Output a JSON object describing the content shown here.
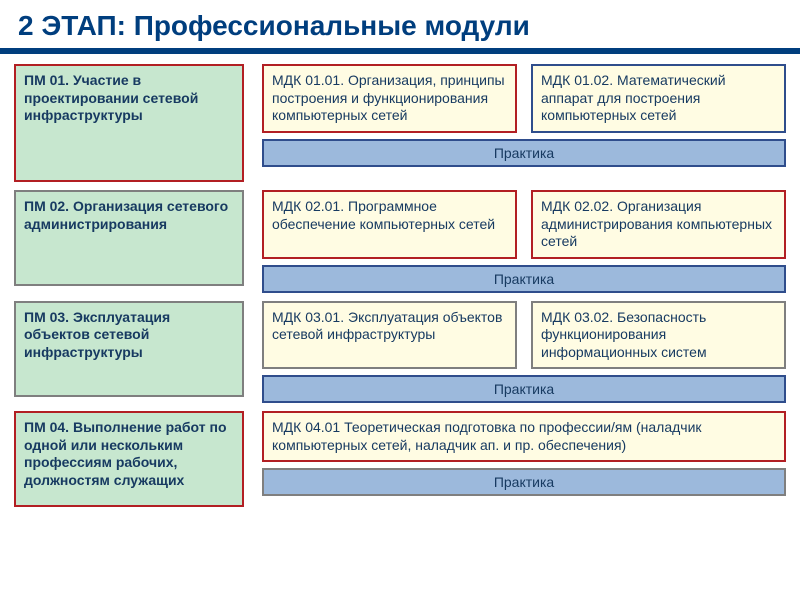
{
  "title": {
    "text": "2 ЭТАП: Профессиональные модули",
    "fontsize": 28,
    "color": "#003e7e"
  },
  "layout": {
    "ruleColor": "#003e7e",
    "ruleHeight": 6
  },
  "fontsizes": {
    "pm": 14,
    "mdk": 14,
    "practice": 14
  },
  "colors": {
    "pm_bg": "#c7e7cf",
    "pm_border1": "#b21f23",
    "pm_border2": "#7f7f7f",
    "pm_text": "#173a61",
    "mdk_bg": "#fffce3",
    "mdk_text": "#173a61",
    "border_red": "#b21f23",
    "border_blue": "#2f4d8c",
    "border_gray": "#7f7f7f",
    "practice_bg": "#9cb9dc",
    "practice_text": "#173a61"
  },
  "rows": [
    {
      "pm": "ПМ 01. Участие в проектировании сетевой инфраструктуры",
      "pm_border": "#b21f23",
      "pm_height": 118,
      "mdk": [
        {
          "text": "МДК 01.01. Организация, принципы построения и функционирования компьютерных сетей",
          "border": "#b21f23"
        },
        {
          "text": "МДК 01.02. Математический аппарат для построения компьютерных сетей",
          "border": "#2f4d8c"
        }
      ],
      "practice": {
        "text": "Практика",
        "border": "#2f4d8c"
      }
    },
    {
      "pm": "ПМ 02. Организация сетевого администрирования",
      "pm_border": "#7f7f7f",
      "pm_height": 96,
      "mdk": [
        {
          "text": "МДК 02.01. Программное обеспечение компьютерных сетей",
          "border": "#b21f23"
        },
        {
          "text": "МДК 02.02. Организация администрирования компьютерных сетей",
          "border": "#b21f23"
        }
      ],
      "practice": {
        "text": "Практика",
        "border": "#2f4d8c"
      }
    },
    {
      "pm": "ПМ 03. Эксплуатация объектов сетевой инфраструктуры",
      "pm_border": "#7f7f7f",
      "pm_height": 96,
      "mdk": [
        {
          "text": "МДК 03.01. Эксплуатация объектов сетевой инфраструктуры",
          "border": "#7f7f7f"
        },
        {
          "text": "МДК 03.02. Безопасность функционирования информационных систем",
          "border": "#7f7f7f"
        }
      ],
      "practice": {
        "text": "Практика",
        "border": "#2f4d8c"
      }
    },
    {
      "pm": "ПМ 04. Выполнение работ по одной или нескольким профессиям рабочих, должностям служащих",
      "pm_border": "#b21f23",
      "pm_height": 96,
      "mdk": [
        {
          "text": "МДК 04.01 Теоретическая подготовка по профессии/ям (наладчик компьютерных сетей, наладчик ап. и пр. обеспечения)",
          "border": "#b21f23",
          "wide": true
        }
      ],
      "practice": {
        "text": "Практика",
        "border": "#7f7f7f"
      }
    }
  ]
}
